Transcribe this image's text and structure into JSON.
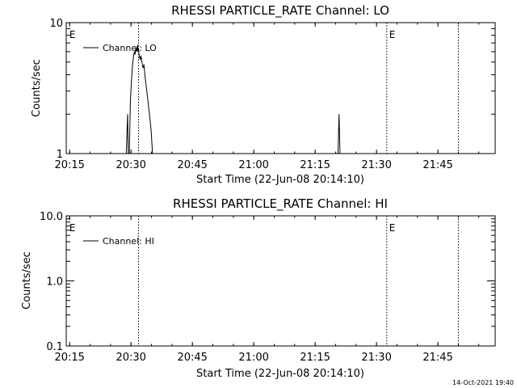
{
  "chart_data": [
    {
      "type": "line",
      "title": "RHESSI PARTICLE_RATE Channel: LO",
      "xlabel": "Start Time (22-Jun-08 20:14:10)",
      "ylabel": "Counts/sec",
      "yscale": "log",
      "xlim": [
        "20:14:10",
        "21:59:00"
      ],
      "ylim": [
        1,
        10
      ],
      "x_ticks": [
        "20:15",
        "20:30",
        "20:45",
        "21:00",
        "21:15",
        "21:30",
        "21:45"
      ],
      "y_ticks": [
        "1",
        "10"
      ],
      "legend": {
        "position": "top-left",
        "entries": [
          "Channel: LO"
        ]
      },
      "event_markers": [
        {
          "label": "E",
          "time": "20:14:20"
        },
        {
          "label": "",
          "time": "20:31:50"
        },
        {
          "label": "E",
          "time": "21:32:30"
        },
        {
          "label": "",
          "time": "21:50:00"
        }
      ],
      "series": [
        {
          "name": "Channel: LO",
          "points": [
            [
              "20:28:50",
              1.0
            ],
            [
              "20:29:10",
              2.0
            ],
            [
              "20:29:20",
              1.0
            ],
            [
              "20:29:35",
              1.0
            ],
            [
              "20:29:50",
              2.5
            ],
            [
              "20:30:05",
              3.5
            ],
            [
              "20:30:20",
              4.6
            ],
            [
              "20:30:35",
              5.5
            ],
            [
              "20:30:50",
              6.0
            ],
            [
              "20:31:00",
              5.7
            ],
            [
              "20:31:10",
              6.4
            ],
            [
              "20:31:20",
              6.0
            ],
            [
              "20:31:30",
              6.6
            ],
            [
              "20:31:40",
              6.1
            ],
            [
              "20:31:50",
              6.3
            ],
            [
              "20:32:00",
              5.6
            ],
            [
              "20:32:15",
              5.2
            ],
            [
              "20:32:25",
              5.6
            ],
            [
              "20:32:40",
              5.0
            ],
            [
              "20:32:55",
              4.5
            ],
            [
              "20:33:10",
              4.8
            ],
            [
              "20:33:25",
              3.9
            ],
            [
              "20:33:45",
              3.2
            ],
            [
              "20:34:05",
              2.6
            ],
            [
              "20:34:30",
              2.0
            ],
            [
              "20:34:55",
              1.5
            ],
            [
              "20:35:15",
              1.0
            ],
            [
              "21:20:35",
              1.0
            ],
            [
              "21:20:50",
              2.0
            ],
            [
              "21:21:05",
              1.0
            ]
          ]
        }
      ]
    },
    {
      "type": "line",
      "title": "RHESSI PARTICLE_RATE Channel: HI",
      "xlabel": "Start Time (22-Jun-08 20:14:10)",
      "ylabel": "Counts/sec",
      "yscale": "log",
      "xlim": [
        "20:14:10",
        "21:59:00"
      ],
      "ylim": [
        0.1,
        10.0
      ],
      "x_ticks": [
        "20:15",
        "20:30",
        "20:45",
        "21:00",
        "21:15",
        "21:30",
        "21:45"
      ],
      "y_ticks": [
        "0.1",
        "1.0",
        "10.0"
      ],
      "legend": {
        "position": "top-left",
        "entries": [
          "Channel: HI"
        ]
      },
      "event_markers": [
        {
          "label": "E",
          "time": "20:14:20"
        },
        {
          "label": "",
          "time": "20:31:50"
        },
        {
          "label": "E",
          "time": "21:32:30"
        },
        {
          "label": "",
          "time": "21:50:00"
        }
      ],
      "series": [
        {
          "name": "Channel: HI",
          "points": []
        }
      ]
    }
  ],
  "footer": {
    "timestamp": "14-Oct-2021 19:40"
  }
}
